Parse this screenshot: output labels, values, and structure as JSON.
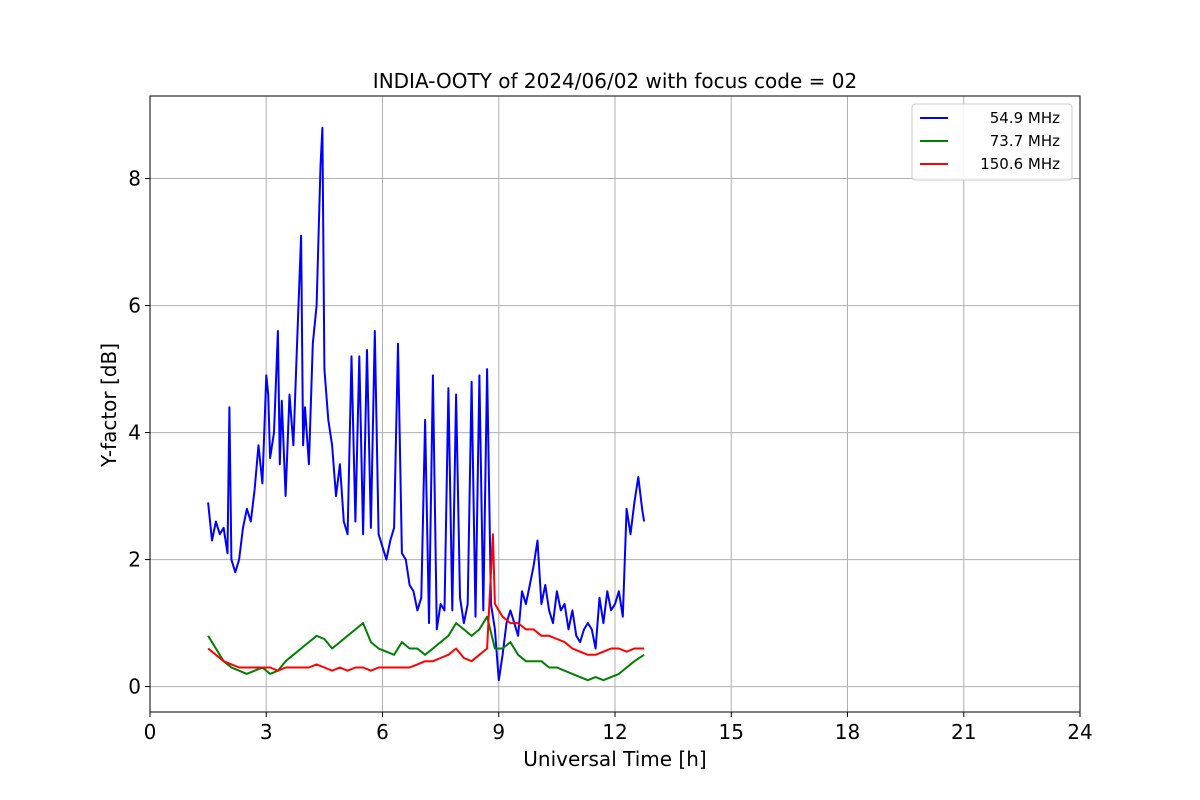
{
  "chart_data": {
    "type": "line",
    "title": "INDIA-OOTY of 2024/06/02 with focus code = 02",
    "xlabel": "Universal Time [h]",
    "ylabel": "Y-factor [dB]",
    "xlim": [
      0,
      24
    ],
    "ylim": [
      -0.4,
      9.3
    ],
    "xticks": [
      0,
      3,
      6,
      9,
      12,
      15,
      18,
      21,
      24
    ],
    "yticks": [
      0,
      2,
      4,
      6,
      8
    ],
    "grid": true,
    "legend_position": "top-right",
    "series": [
      {
        "name": "54.9 MHz",
        "color": "#0000ff",
        "x": [
          1.5,
          1.6,
          1.7,
          1.8,
          1.9,
          2.0,
          2.05,
          2.1,
          2.2,
          2.3,
          2.4,
          2.5,
          2.6,
          2.7,
          2.8,
          2.9,
          3.0,
          3.05,
          3.1,
          3.2,
          3.3,
          3.35,
          3.4,
          3.5,
          3.6,
          3.7,
          3.8,
          3.9,
          3.95,
          4.0,
          4.1,
          4.2,
          4.3,
          4.4,
          4.45,
          4.5,
          4.6,
          4.7,
          4.8,
          4.9,
          5.0,
          5.1,
          5.2,
          5.3,
          5.4,
          5.5,
          5.6,
          5.7,
          5.8,
          5.9,
          6.0,
          6.1,
          6.2,
          6.3,
          6.4,
          6.5,
          6.6,
          6.7,
          6.8,
          6.9,
          7.0,
          7.1,
          7.2,
          7.3,
          7.4,
          7.5,
          7.6,
          7.7,
          7.8,
          7.9,
          8.0,
          8.1,
          8.2,
          8.3,
          8.4,
          8.5,
          8.6,
          8.7,
          8.8,
          8.9,
          9.0,
          9.1,
          9.2,
          9.3,
          9.4,
          9.5,
          9.6,
          9.7,
          9.8,
          9.9,
          10.0,
          10.1,
          10.2,
          10.3,
          10.4,
          10.5,
          10.6,
          10.7,
          10.8,
          10.9,
          11.0,
          11.1,
          11.2,
          11.3,
          11.4,
          11.5,
          11.6,
          11.7,
          11.8,
          11.9,
          12.0,
          12.1,
          12.2,
          12.3,
          12.4,
          12.5,
          12.6,
          12.7,
          12.75
        ],
        "y": [
          2.9,
          2.3,
          2.6,
          2.4,
          2.5,
          2.1,
          4.4,
          2.0,
          1.8,
          2.0,
          2.5,
          2.8,
          2.6,
          3.1,
          3.8,
          3.2,
          4.9,
          4.6,
          3.6,
          4.0,
          5.6,
          3.5,
          4.5,
          3.0,
          4.6,
          3.8,
          5.5,
          7.1,
          3.8,
          4.4,
          3.5,
          5.4,
          6.0,
          8.2,
          8.8,
          5.0,
          4.2,
          3.8,
          3.0,
          3.5,
          2.6,
          2.4,
          5.2,
          2.6,
          5.2,
          2.4,
          5.3,
          2.5,
          5.6,
          2.4,
          2.2,
          2.0,
          2.3,
          2.5,
          5.4,
          2.1,
          2.0,
          1.6,
          1.5,
          1.2,
          1.4,
          4.2,
          1.0,
          4.9,
          0.9,
          1.3,
          1.2,
          4.7,
          1.2,
          4.6,
          1.4,
          1.0,
          1.3,
          4.8,
          1.1,
          4.9,
          1.2,
          5.0,
          1.3,
          0.9,
          0.1,
          0.5,
          1.0,
          1.2,
          1.0,
          0.8,
          1.5,
          1.3,
          1.6,
          1.9,
          2.3,
          1.3,
          1.6,
          1.2,
          1.0,
          1.5,
          1.2,
          1.3,
          0.9,
          1.2,
          0.8,
          0.7,
          0.9,
          1.0,
          0.9,
          0.6,
          1.4,
          1.0,
          1.5,
          1.2,
          1.3,
          1.5,
          1.1,
          2.8,
          2.4,
          2.9,
          3.3,
          2.8,
          2.6
        ]
      },
      {
        "name": "73.7 MHz",
        "color": "#008000",
        "x": [
          1.5,
          1.7,
          1.9,
          2.1,
          2.3,
          2.5,
          2.7,
          2.9,
          3.1,
          3.3,
          3.5,
          3.7,
          3.9,
          4.1,
          4.3,
          4.5,
          4.7,
          4.9,
          5.1,
          5.3,
          5.5,
          5.7,
          5.9,
          6.1,
          6.3,
          6.5,
          6.7,
          6.9,
          7.1,
          7.3,
          7.5,
          7.7,
          7.9,
          8.1,
          8.3,
          8.5,
          8.7,
          8.9,
          9.1,
          9.3,
          9.5,
          9.7,
          9.9,
          10.1,
          10.3,
          10.5,
          10.7,
          10.9,
          11.1,
          11.3,
          11.5,
          11.7,
          11.9,
          12.1,
          12.3,
          12.5,
          12.75
        ],
        "y": [
          0.8,
          0.6,
          0.4,
          0.3,
          0.25,
          0.2,
          0.25,
          0.3,
          0.2,
          0.25,
          0.4,
          0.5,
          0.6,
          0.7,
          0.8,
          0.75,
          0.6,
          0.7,
          0.8,
          0.9,
          1.0,
          0.7,
          0.6,
          0.55,
          0.5,
          0.7,
          0.6,
          0.6,
          0.5,
          0.6,
          0.7,
          0.8,
          1.0,
          0.9,
          0.8,
          0.9,
          1.1,
          0.6,
          0.6,
          0.7,
          0.5,
          0.4,
          0.4,
          0.4,
          0.3,
          0.3,
          0.25,
          0.2,
          0.15,
          0.1,
          0.15,
          0.1,
          0.15,
          0.2,
          0.3,
          0.4,
          0.5
        ]
      },
      {
        "name": "150.6 MHz",
        "color": "#ff0000",
        "x": [
          1.5,
          1.7,
          1.9,
          2.1,
          2.3,
          2.5,
          2.7,
          2.9,
          3.1,
          3.3,
          3.5,
          3.7,
          3.9,
          4.1,
          4.3,
          4.5,
          4.7,
          4.9,
          5.1,
          5.3,
          5.5,
          5.7,
          5.9,
          6.1,
          6.3,
          6.5,
          6.7,
          6.9,
          7.1,
          7.3,
          7.5,
          7.7,
          7.9,
          8.1,
          8.3,
          8.5,
          8.7,
          8.85,
          8.9,
          9.1,
          9.3,
          9.5,
          9.7,
          9.9,
          10.1,
          10.3,
          10.5,
          10.7,
          10.9,
          11.1,
          11.3,
          11.5,
          11.7,
          11.9,
          12.1,
          12.3,
          12.5,
          12.75
        ],
        "y": [
          0.6,
          0.5,
          0.4,
          0.35,
          0.3,
          0.3,
          0.3,
          0.3,
          0.3,
          0.25,
          0.3,
          0.3,
          0.3,
          0.3,
          0.35,
          0.3,
          0.25,
          0.3,
          0.25,
          0.3,
          0.3,
          0.25,
          0.3,
          0.3,
          0.3,
          0.3,
          0.3,
          0.35,
          0.4,
          0.4,
          0.45,
          0.5,
          0.6,
          0.45,
          0.4,
          0.5,
          0.6,
          2.4,
          1.3,
          1.1,
          1.0,
          1.0,
          0.9,
          0.9,
          0.8,
          0.8,
          0.75,
          0.7,
          0.6,
          0.55,
          0.5,
          0.5,
          0.55,
          0.6,
          0.6,
          0.55,
          0.6,
          0.6
        ]
      }
    ]
  }
}
